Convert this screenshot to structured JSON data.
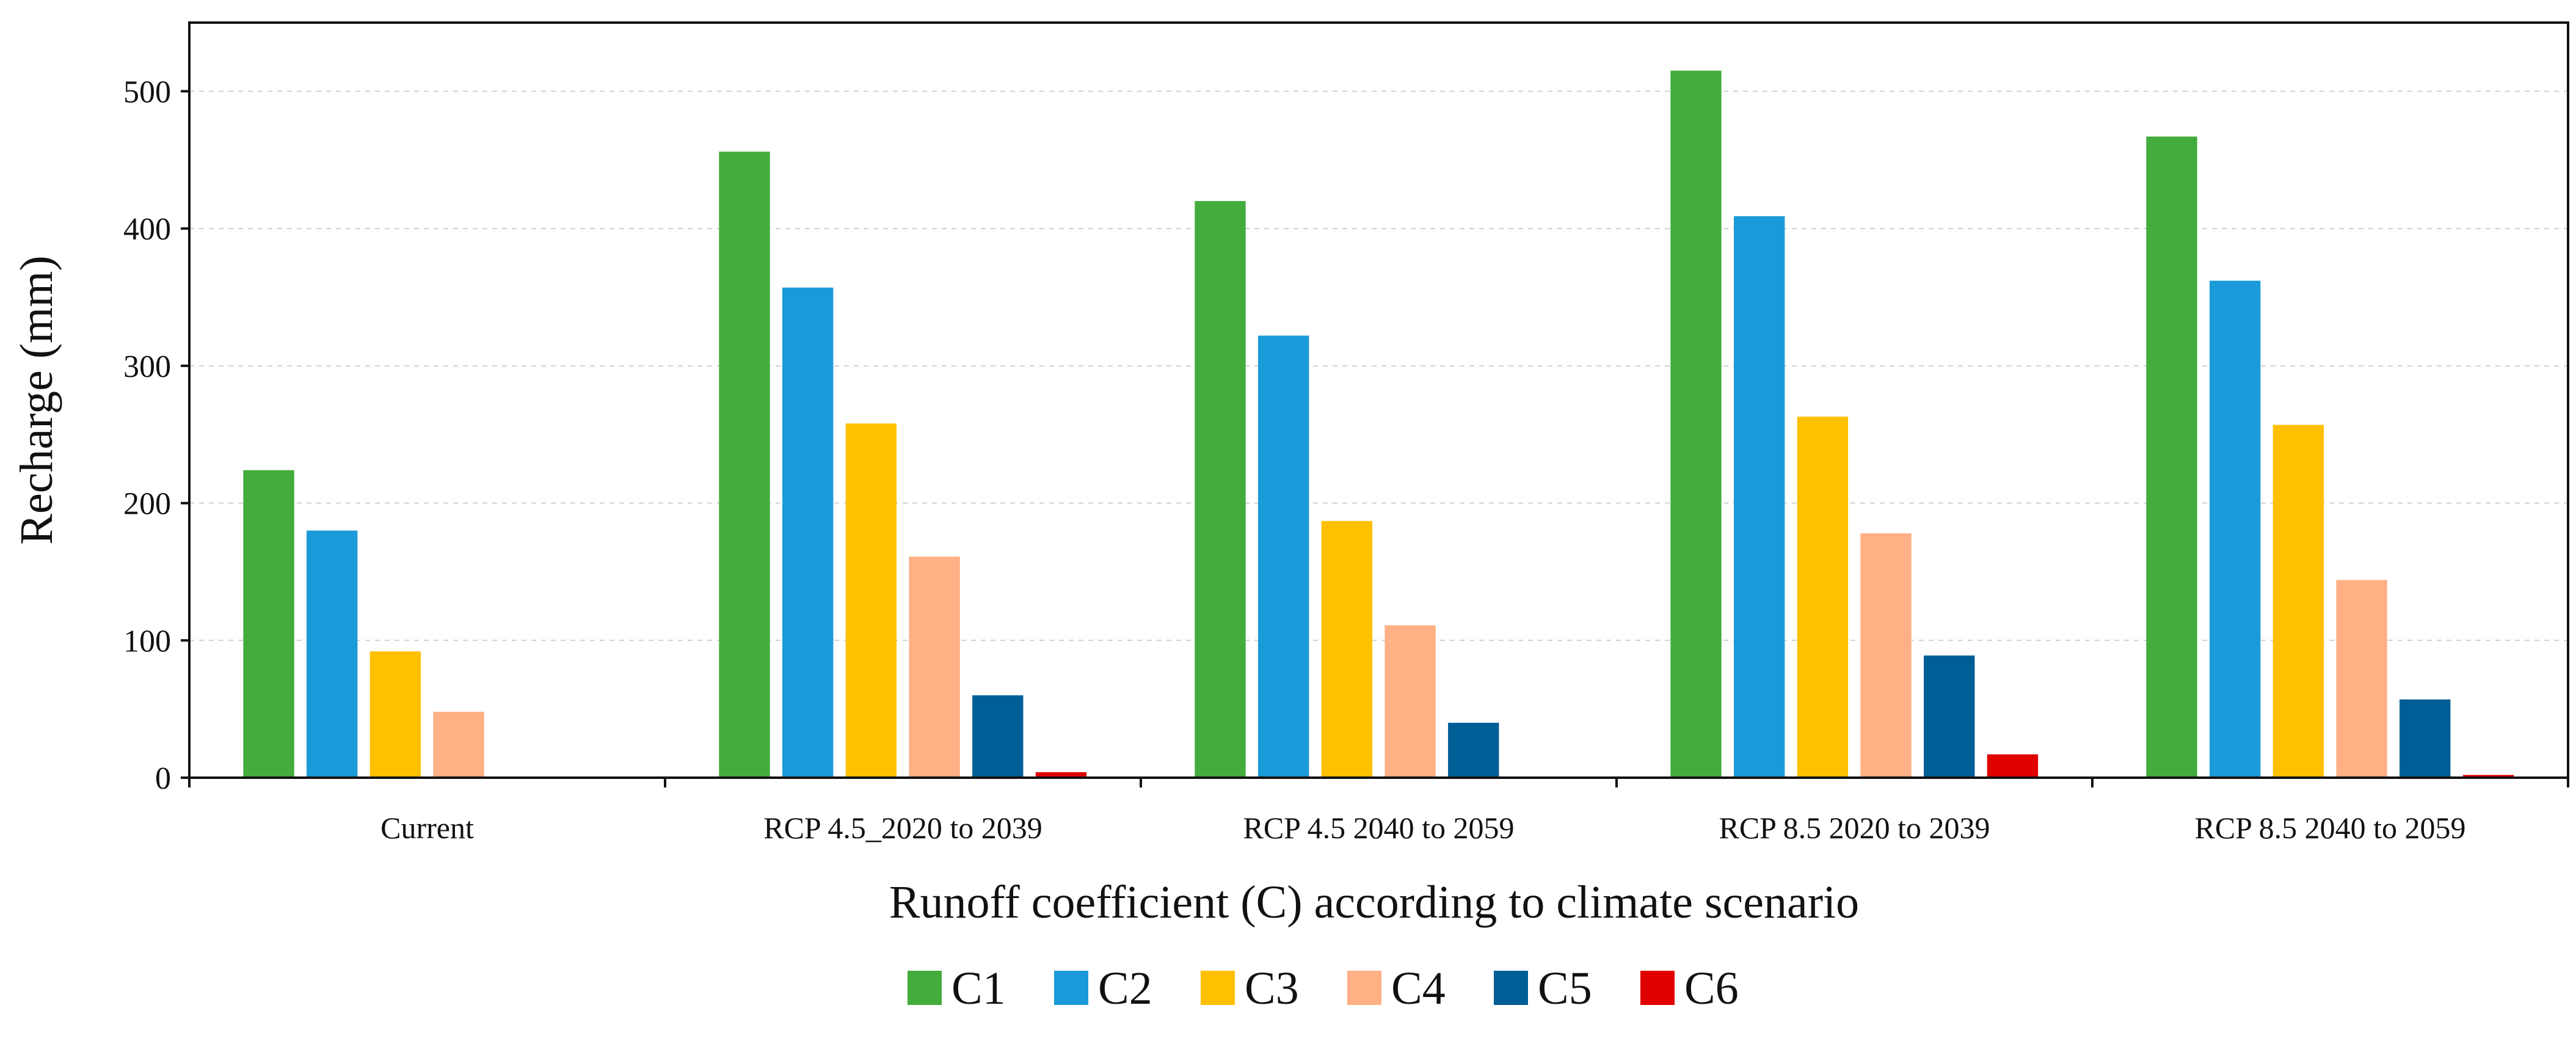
{
  "chart_data": {
    "type": "bar",
    "title": "",
    "xlabel": "Runoff coefficient (C) according to climate scenario",
    "ylabel": "Recharge (mm)",
    "ylim": [
      0,
      550
    ],
    "yticks": [
      0,
      100,
      200,
      300,
      400,
      500
    ],
    "grid": true,
    "legend_position": "bottom",
    "categories": [
      "Current",
      "RCP 4.5_2020 to 2039",
      "RCP 4.5 2040 to 2059",
      "RCP 8.5 2020 to 2039",
      "RCP 8.5 2040 to 2059"
    ],
    "series": [
      {
        "name": "C1",
        "color": "#43ac3c",
        "values": [
          224,
          456,
          420,
          515,
          467
        ]
      },
      {
        "name": "C2",
        "color": "#1a9ad8",
        "values": [
          180,
          357,
          322,
          409,
          362
        ]
      },
      {
        "name": "C3",
        "color": "#ffc000",
        "values": [
          92,
          258,
          187,
          263,
          257
        ]
      },
      {
        "name": "C4",
        "color": "#ffb084",
        "values": [
          48,
          161,
          111,
          178,
          144
        ]
      },
      {
        "name": "C5",
        "color": "#005e97",
        "values": [
          0,
          60,
          40,
          89,
          57
        ]
      },
      {
        "name": "C6",
        "color": "#e00000",
        "values": [
          0,
          4,
          0,
          17,
          2
        ]
      }
    ]
  }
}
